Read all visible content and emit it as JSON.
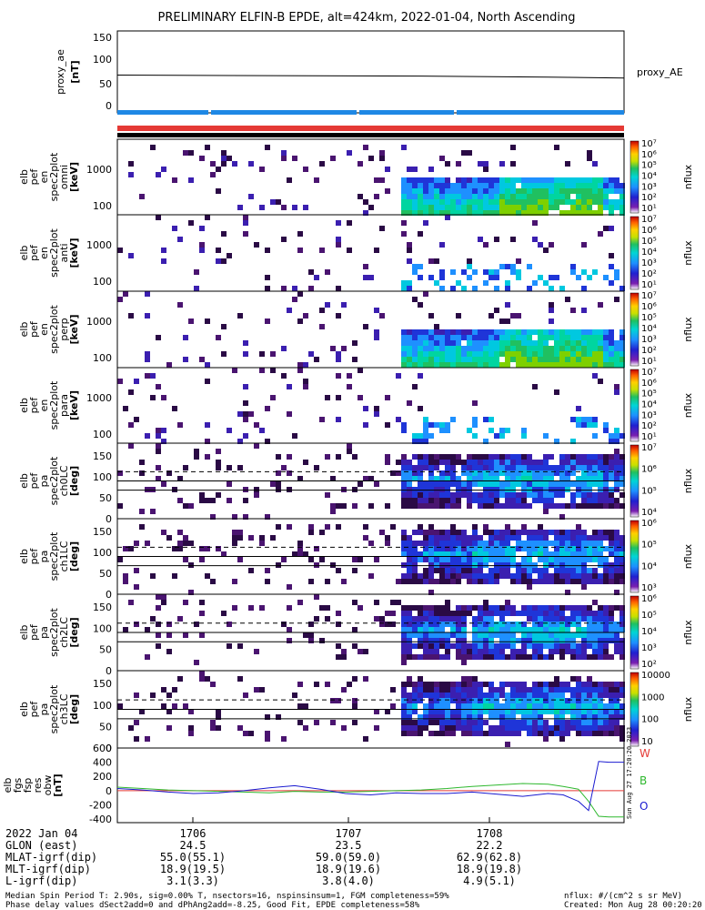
{
  "title": "PRELIMINARY ELFIN-B EPDE, alt=424km, 2022-01-04, North Ascending",
  "colors": {
    "background": "#ffffff",
    "axes": "#000000",
    "science_zone_bar": "#1e88e5",
    "north_bar": "#e53935",
    "fgm_W": "#e53935",
    "fgm_B": "#2eb82e",
    "fgm_O": "#1a1ad0"
  },
  "chart_data": [
    {
      "type": "line",
      "panel": "proxy_ae",
      "ylabel": [
        "proxy_ae",
        "[nT]"
      ],
      "yticks": [
        "150",
        "100",
        "50",
        "0"
      ],
      "ylim": [
        -10,
        155
      ],
      "legend": "proxy_AE",
      "legend_placement": "right",
      "x": [
        0,
        0.3,
        0.6,
        0.85,
        1
      ],
      "series": [
        {
          "values": [
            66,
            65,
            64,
            62,
            60
          ]
        }
      ]
    },
    {
      "type": "heatmap",
      "panel": "pef_en_spec2plot_omni",
      "ylabel": [
        "elb",
        "pef",
        "en",
        "spec2plot",
        "omni",
        "[keV]"
      ],
      "yticks": [
        "1000",
        "100"
      ],
      "ylog": true,
      "ylim": [
        55,
        7000
      ],
      "colorbar": {
        "label": "nflux",
        "ticks": [
          "10⁷",
          "10⁶",
          "10⁵",
          "10⁴",
          "10³",
          "10²",
          "10¹"
        ]
      }
    },
    {
      "type": "heatmap",
      "panel": "pef_en_spec2plot_anti",
      "ylabel": [
        "elb",
        "pef",
        "en",
        "spec2plot",
        "anti",
        "[keV]"
      ],
      "yticks": [
        "1000",
        "100"
      ],
      "ylog": true,
      "ylim": [
        55,
        7000
      ],
      "colorbar": {
        "label": "nflux",
        "ticks": [
          "10⁷",
          "10⁶",
          "10⁵",
          "10⁴",
          "10³",
          "10²",
          "10¹"
        ]
      }
    },
    {
      "type": "heatmap",
      "panel": "pef_en_spec2plot_perp",
      "ylabel": [
        "elb",
        "pef",
        "en",
        "spec2plot",
        "perp",
        "[keV]"
      ],
      "yticks": [
        "1000",
        "100"
      ],
      "ylog": true,
      "ylim": [
        55,
        7000
      ],
      "colorbar": {
        "label": "nflux",
        "ticks": [
          "10⁷",
          "10⁶",
          "10⁵",
          "10⁴",
          "10³",
          "10²",
          "10¹"
        ]
      }
    },
    {
      "type": "heatmap",
      "panel": "pef_en_spec2plot_para",
      "ylabel": [
        "elb",
        "pef",
        "en",
        "spec2plot",
        "para",
        "[keV]"
      ],
      "yticks": [
        "1000",
        "100"
      ],
      "ylog": true,
      "ylim": [
        55,
        7000
      ],
      "colorbar": {
        "label": "nflux",
        "ticks": [
          "10⁷",
          "10⁶",
          "10⁵",
          "10⁴",
          "10³",
          "10²",
          "10¹"
        ]
      }
    },
    {
      "type": "heatmap",
      "panel": "pef_pa_spec2plot_ch0LC",
      "ylabel": [
        "elb",
        "pef",
        "pa",
        "spec2plot",
        "ch0LC",
        "[deg]"
      ],
      "yticks": [
        "150",
        "100",
        "50",
        "0"
      ],
      "ylim": [
        0,
        180
      ],
      "reference_lines": [
        {
          "value": 90,
          "style": "solid"
        },
        {
          "value": 68,
          "style": "solid"
        },
        {
          "value": 112,
          "style": "dashed"
        }
      ],
      "colorbar": {
        "label": "nflux",
        "ticks": [
          "10⁷",
          "10⁶",
          "10⁵",
          "10⁴"
        ]
      }
    },
    {
      "type": "heatmap",
      "panel": "pef_pa_spec2plot_ch1LC",
      "ylabel": [
        "elb",
        "pef",
        "pa",
        "spec2plot",
        "ch1LC",
        "[deg]"
      ],
      "yticks": [
        "150",
        "100",
        "50",
        "0"
      ],
      "ylim": [
        0,
        180
      ],
      "reference_lines": [
        {
          "value": 90,
          "style": "solid"
        },
        {
          "value": 68,
          "style": "solid"
        },
        {
          "value": 112,
          "style": "dashed"
        }
      ],
      "colorbar": {
        "label": "nflux",
        "ticks": [
          "10⁶",
          "10⁵",
          "10⁴",
          "10³"
        ]
      }
    },
    {
      "type": "heatmap",
      "panel": "pef_pa_spec2plot_ch2LC",
      "ylabel": [
        "elb",
        "pef",
        "pa",
        "spec2plot",
        "ch2LC",
        "[deg]"
      ],
      "yticks": [
        "150",
        "100",
        "50",
        "0"
      ],
      "ylim": [
        0,
        180
      ],
      "reference_lines": [
        {
          "value": 90,
          "style": "solid"
        },
        {
          "value": 68,
          "style": "solid"
        },
        {
          "value": 112,
          "style": "dashed"
        }
      ],
      "colorbar": {
        "label": "nflux",
        "ticks": [
          "10⁶",
          "10⁵",
          "10⁴",
          "10³",
          "10²"
        ]
      }
    },
    {
      "type": "heatmap",
      "panel": "pef_pa_spec2plot_ch3LC",
      "ylabel": [
        "elb",
        "pef",
        "pa",
        "spec2plot",
        "ch3LC",
        "[deg]"
      ],
      "yticks": [
        "150",
        "100",
        "50",
        "0"
      ],
      "ylim": [
        0,
        180
      ],
      "reference_lines": [
        {
          "value": 90,
          "style": "solid"
        },
        {
          "value": 68,
          "style": "solid"
        },
        {
          "value": 112,
          "style": "dashed"
        }
      ],
      "colorbar": {
        "label": "nflux",
        "ticks": [
          "10000",
          "1000",
          "100",
          "10"
        ]
      }
    },
    {
      "type": "line",
      "panel": "fgs_fsp_res_obw",
      "ylabel": [
        "elb",
        "fgs",
        "fsp",
        "res",
        "obw",
        "[nT]"
      ],
      "yticks": [
        "600",
        "400",
        "200",
        "0",
        "-200",
        "-400"
      ],
      "ylim": [
        -450,
        600
      ],
      "x": [
        0,
        0.05,
        0.1,
        0.15,
        0.2,
        0.25,
        0.3,
        0.35,
        0.4,
        0.45,
        0.5,
        0.55,
        0.6,
        0.65,
        0.7,
        0.75,
        0.8,
        0.85,
        0.88,
        0.91,
        0.93,
        0.95,
        0.97,
        1
      ],
      "series": [
        {
          "name": "W",
          "values": [
            0,
            0,
            0,
            0,
            0,
            0,
            0,
            0,
            0,
            0,
            0,
            0,
            0,
            0,
            0,
            0,
            0,
            0,
            0,
            0,
            0,
            0,
            0,
            0
          ]
        },
        {
          "name": "B",
          "values": [
            50,
            30,
            10,
            0,
            -10,
            -20,
            -30,
            -10,
            -20,
            -20,
            -10,
            0,
            10,
            30,
            60,
            80,
            100,
            90,
            60,
            20,
            -150,
            -360,
            -370,
            -370
          ]
        },
        {
          "name": "O",
          "values": [
            30,
            10,
            -20,
            -40,
            -30,
            0,
            40,
            70,
            20,
            -40,
            -60,
            -30,
            -40,
            -40,
            -20,
            -50,
            -80,
            -40,
            -60,
            -150,
            -280,
            410,
            400,
            400
          ]
        }
      ]
    }
  ],
  "time_axis": {
    "ticks": [
      "1706",
      "1707",
      "1708"
    ]
  },
  "ephemeris": {
    "labels": [
      "2022 Jan 04",
      "GLON (east)",
      "MLAT-igrf(dip)",
      "MLT-igrf(dip)",
      "L-igrf(dip)"
    ],
    "columns": [
      [
        "1706",
        "24.5",
        "55.0(55.1)",
        "18.9(19.5)",
        "3.1(3.3)"
      ],
      [
        "1707",
        "23.5",
        "59.0(59.0)",
        "18.9(19.6)",
        "3.8(4.0)"
      ],
      [
        "1708",
        "22.2",
        "62.9(62.8)",
        "18.9(19.8)",
        "4.9(5.1)"
      ]
    ]
  },
  "footer": {
    "line1_left": "Median Spin Period T: 2.90s, sig=0.00% T, nsectors=16, nspinsinsum=1, FGM completeness=59%",
    "line2_left": "Phase delay values dSect2add=0 and dPhAng2add=-8.25, Good Fit, EPDE completeness=58%",
    "line1_right": "nflux: #/(cm^2 s sr MeV)",
    "line2_right": "Created: Mon Aug 28 00:20:20 2023",
    "side_stamp": "Sun Aug 27 17:20:20 2023"
  }
}
